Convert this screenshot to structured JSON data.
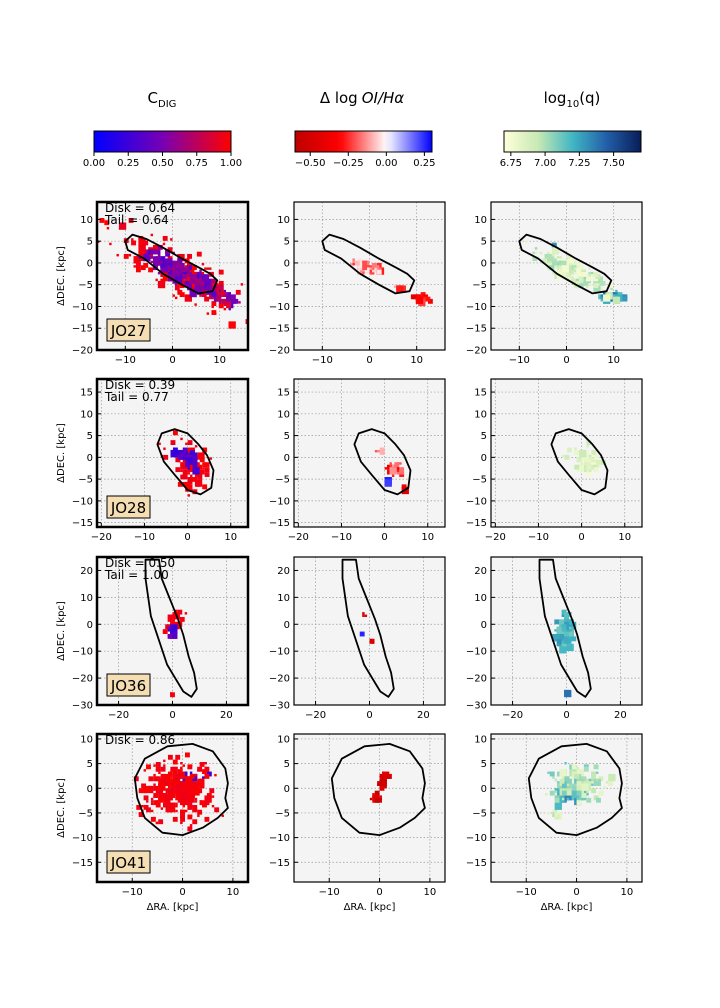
{
  "chart_data": {
    "type": "panel-grid",
    "columns": [
      {
        "key": "cdig",
        "title": "C",
        "title_sub": "DIG",
        "colorbar": {
          "cmap": "bluered",
          "range": [
            0,
            1
          ],
          "ticks": [
            "0.00",
            "0.25",
            "0.50",
            "0.75",
            "1.00"
          ],
          "tick_values": [
            0,
            0.25,
            0.5,
            0.75,
            1.0
          ]
        }
      },
      {
        "key": "dlog",
        "title": "Δ log",
        "title_italic": "OI/Hα",
        "colorbar": {
          "cmap": "redwhiteblue",
          "range": [
            -0.6,
            0.3
          ],
          "ticks": [
            "−0.50",
            "−0.25",
            "0.00",
            "0.25"
          ],
          "tick_values": [
            -0.5,
            -0.25,
            0,
            0.25
          ]
        }
      },
      {
        "key": "logq",
        "title": "log",
        "title_sub": "10",
        "title_tail": "(q)",
        "colorbar": {
          "cmap": "ylgnbu",
          "range": [
            6.7,
            7.7
          ],
          "ticks": [
            "6.75",
            "7.00",
            "7.25",
            "7.50"
          ],
          "tick_values": [
            6.75,
            7.0,
            7.25,
            7.5
          ]
        }
      }
    ],
    "xlabel": "ΔRA. [kpc]",
    "ylabel": "ΔDEC. [kpc]",
    "rows": [
      {
        "name": "JO27",
        "disk": "Disk = 0.64",
        "tail": "Tail = 0.64",
        "xlim": [
          -16,
          16
        ],
        "ylim": [
          -20,
          14
        ],
        "xticks": [
          -10,
          0,
          10
        ],
        "yticks": [
          -20,
          -15,
          -10,
          -5,
          0,
          5,
          10
        ],
        "xtick_labels": [
          "−10",
          "0",
          "10"
        ],
        "ytick_labels": [
          "−20",
          "−15",
          "−10",
          "−5",
          "0",
          "5",
          "10"
        ],
        "contour": [
          [
            -8.5,
            6.5
          ],
          [
            -5.5,
            5.5
          ],
          [
            -2,
            3.5
          ],
          [
            2,
            1
          ],
          [
            5.5,
            -1
          ],
          [
            8,
            -2.5
          ],
          [
            9.5,
            -4
          ],
          [
            8.5,
            -6.5
          ],
          [
            5.5,
            -7
          ],
          [
            2,
            -5
          ],
          [
            -2,
            -2.5
          ],
          [
            -6,
            1
          ],
          [
            -9.5,
            3
          ],
          [
            -10,
            5
          ]
        ],
        "blobs": {
          "cdig": [
            {
              "cx": 0,
              "cy": -1,
              "sx": 7,
              "sy": 2.2,
              "ang": -32,
              "n": 140,
              "v": [
                0.3,
                0.7
              ]
            },
            {
              "cx": 8,
              "cy": -6,
              "sx": 6,
              "sy": 1.8,
              "ang": -25,
              "n": 90,
              "v": [
                0.35,
                0.95
              ]
            },
            {
              "cx": 0,
              "cy": -1,
              "sx": 13,
              "sy": 4.5,
              "ang": -32,
              "n": 160,
              "v": [
                0.92,
                1.0
              ]
            }
          ],
          "dlog": [
            {
              "cx": -1,
              "cy": -0.5,
              "sx": 3,
              "sy": 1.3,
              "ang": -20,
              "n": 50,
              "v": [
                -0.3,
                0.0
              ]
            },
            {
              "cx": 10.5,
              "cy": -7.5,
              "sx": 1.5,
              "sy": 0.6,
              "ang": 0,
              "n": 25,
              "v": [
                -0.45,
                -0.2
              ]
            },
            {
              "cx": 6,
              "cy": -5.3,
              "sx": 1.2,
              "sy": 0.5,
              "ang": 0,
              "n": 8,
              "v": [
                -0.3,
                -0.1
              ]
            }
          ],
          "logq": [
            {
              "cx": 1,
              "cy": -1.5,
              "sx": 8,
              "sy": 2,
              "ang": -30,
              "n": 150,
              "v": [
                6.75,
                7.05
              ]
            },
            {
              "cx": 9.5,
              "cy": -7.3,
              "sx": 2,
              "sy": 0.8,
              "ang": 0,
              "n": 40,
              "v": [
                7.15,
                7.45
              ]
            },
            {
              "cx": -3,
              "cy": 4.5,
              "sx": 0.6,
              "sy": 0.5,
              "ang": 0,
              "n": 5,
              "v": [
                7.25,
                7.35
              ]
            }
          ]
        }
      },
      {
        "name": "JO28",
        "disk": "Disk = 0.39",
        "tail": "Tail = 0.77",
        "xlim": [
          -21,
          14
        ],
        "ylim": [
          -16,
          18
        ],
        "xticks": [
          -20,
          -10,
          0,
          10
        ],
        "yticks": [
          -15,
          -10,
          -5,
          0,
          5,
          10,
          15
        ],
        "xtick_labels": [
          "−20",
          "−10",
          "0",
          "10"
        ],
        "ytick_labels": [
          "−15",
          "−10",
          "−5",
          "0",
          "5",
          "10",
          "15"
        ],
        "contour": [
          [
            -6,
            5.5
          ],
          [
            -3,
            6.5
          ],
          [
            0,
            5.5
          ],
          [
            2.5,
            3
          ],
          [
            4.5,
            0.5
          ],
          [
            6,
            -3
          ],
          [
            5.5,
            -7
          ],
          [
            3,
            -8.5
          ],
          [
            0,
            -7.5
          ],
          [
            -3,
            -4
          ],
          [
            -5.5,
            -1
          ],
          [
            -7,
            3
          ]
        ],
        "blobs": {
          "cdig": [
            {
              "cx": 0,
              "cy": 0,
              "sx": 2.2,
              "sy": 1.3,
              "ang": -55,
              "n": 45,
              "v": [
                0.2,
                0.45
              ]
            },
            {
              "cx": -3,
              "cy": 1.8,
              "sx": 1.2,
              "sy": 0.5,
              "ang": 0,
              "n": 12,
              "v": [
                0.18,
                0.3
              ]
            },
            {
              "cx": 0,
              "cy": -1,
              "sx": 6,
              "sy": 3.5,
              "ang": -55,
              "n": 110,
              "v": [
                0.92,
                1.0
              ]
            }
          ],
          "dlog": [
            {
              "cx": 2,
              "cy": -2,
              "sx": 1.5,
              "sy": 1.3,
              "ang": 0,
              "n": 30,
              "v": [
                -0.45,
                -0.1
              ]
            },
            {
              "cx": -1.5,
              "cy": 2,
              "sx": 0.8,
              "sy": 0.4,
              "ang": 0,
              "n": 6,
              "v": [
                -0.25,
                -0.05
              ]
            },
            {
              "cx": 0,
              "cy": -5,
              "sx": 0.6,
              "sy": 0.4,
              "ang": 0,
              "n": 3,
              "v": [
                0.2,
                0.28
              ]
            },
            {
              "cx": 4,
              "cy": -6.5,
              "sx": 0.6,
              "sy": 0.3,
              "ang": 0,
              "n": 3,
              "v": [
                -0.45,
                -0.3
              ]
            }
          ],
          "logq": [
            {
              "cx": 0.5,
              "cy": -0.5,
              "sx": 3.5,
              "sy": 3,
              "ang": 0,
              "n": 80,
              "v": [
                6.75,
                6.95
              ]
            }
          ]
        }
      },
      {
        "name": "JO36",
        "disk": "Disk = 0.50",
        "tail": "Tail = 1.00",
        "xlim": [
          -28,
          28
        ],
        "ylim": [
          -30,
          25
        ],
        "xticks": [
          -20,
          0,
          20
        ],
        "yticks": [
          -30,
          -20,
          -10,
          0,
          10,
          20
        ],
        "xtick_labels": [
          "−20",
          "0",
          "20"
        ],
        "ytick_labels": [
          "−30",
          "−20",
          "−10",
          "0",
          "10",
          "20"
        ],
        "contour": [
          [
            -10,
            24
          ],
          [
            -5,
            24
          ],
          [
            -4,
            17
          ],
          [
            -2,
            12
          ],
          [
            0,
            7
          ],
          [
            2,
            2
          ],
          [
            4,
            -4
          ],
          [
            6,
            -12
          ],
          [
            8,
            -18
          ],
          [
            9,
            -24
          ],
          [
            7,
            -27
          ],
          [
            4,
            -25
          ],
          [
            1,
            -20
          ],
          [
            -2,
            -15
          ],
          [
            -4,
            -9
          ],
          [
            -6,
            -3
          ],
          [
            -8,
            3
          ],
          [
            -9,
            10
          ],
          [
            -10,
            17
          ]
        ],
        "blobs": {
          "cdig": [
            {
              "cx": -1,
              "cy": -1.5,
              "sx": 1.2,
              "sy": 2.5,
              "ang": 0,
              "n": 20,
              "v": [
                0.2,
                0.5
              ]
            },
            {
              "cx": 0,
              "cy": 1,
              "sx": 2.5,
              "sy": 4,
              "ang": -10,
              "n": 40,
              "v": [
                0.92,
                1.0
              ]
            },
            {
              "cx": -1,
              "cy": -25,
              "sx": 0.7,
              "sy": 0.5,
              "ang": 0,
              "n": 3,
              "v": [
                0.95,
                1.0
              ]
            }
          ],
          "dlog": [
            {
              "cx": -2.5,
              "cy": 3,
              "sx": 0.6,
              "sy": 1,
              "ang": 0,
              "n": 3,
              "v": [
                -0.5,
                -0.4
              ]
            },
            {
              "cx": 0,
              "cy": -5.5,
              "sx": 0.8,
              "sy": 0.8,
              "ang": 0,
              "n": 4,
              "v": [
                -0.5,
                -0.35
              ]
            },
            {
              "cx": -4,
              "cy": -3,
              "sx": 0.4,
              "sy": 0.4,
              "ang": 0,
              "n": 1,
              "v": [
                0.25,
                0.29
              ]
            }
          ],
          "logq": [
            {
              "cx": -1.5,
              "cy": -1,
              "sx": 2.8,
              "sy": 6,
              "ang": -8,
              "n": 110,
              "v": [
                7.1,
                7.3
              ]
            },
            {
              "cx": -0.5,
              "cy": -1,
              "sx": 1.2,
              "sy": 3,
              "ang": 0,
              "n": 35,
              "v": [
                7.45,
                7.7
              ]
            },
            {
              "cx": -1,
              "cy": -25,
              "sx": 0.4,
              "sy": 0.4,
              "ang": 0,
              "n": 2,
              "v": [
                7.3,
                7.4
              ]
            }
          ]
        }
      },
      {
        "name": "JO41",
        "disk": "Disk = 0.86",
        "tail": "",
        "xlim": [
          -17,
          13
        ],
        "ylim": [
          -19,
          11
        ],
        "xticks": [
          -10,
          0,
          10
        ],
        "yticks": [
          -15,
          -10,
          -5,
          0,
          5,
          10
        ],
        "xtick_labels": [
          "−10",
          "0",
          "10"
        ],
        "ytick_labels": [
          "−15",
          "−10",
          "−5",
          "0",
          "5",
          "10"
        ],
        "contour": [
          [
            -3,
            8.5
          ],
          [
            2,
            9
          ],
          [
            6,
            7.5
          ],
          [
            8.5,
            4
          ],
          [
            9,
            1
          ],
          [
            8.5,
            -2
          ],
          [
            9,
            -4
          ],
          [
            7,
            -6
          ],
          [
            4,
            -8
          ],
          [
            0,
            -9.5
          ],
          [
            -4,
            -9
          ],
          [
            -7.5,
            -6
          ],
          [
            -9,
            -2
          ],
          [
            -9.5,
            2
          ],
          [
            -7.5,
            6
          ]
        ],
        "blobs": {
          "cdig": [
            {
              "cx": -1.5,
              "cy": 0,
              "sx": 6.5,
              "sy": 5.5,
              "ang": 0,
              "n": 300,
              "v": [
                0.93,
                1.0
              ]
            },
            {
              "cx": 1.5,
              "cy": 2.5,
              "sx": 2.3,
              "sy": 1.6,
              "ang": 0,
              "n": 24,
              "v": [
                0.18,
                0.35
              ]
            },
            {
              "cx": -9,
              "cy": -4,
              "sx": 1,
              "sy": 1,
              "ang": 0,
              "n": 4,
              "v": [
                0.95,
                1.0
              ]
            }
          ],
          "dlog": [
            {
              "cx": 0.5,
              "cy": 2,
              "sx": 0.8,
              "sy": 1.5,
              "ang": 0,
              "n": 14,
              "v": [
                -0.55,
                -0.4
              ]
            },
            {
              "cx": -1,
              "cy": -1.5,
              "sx": 1.2,
              "sy": 0.8,
              "ang": 0,
              "n": 10,
              "v": [
                -0.55,
                -0.4
              ]
            }
          ],
          "logq": [
            {
              "cx": 0,
              "cy": 1.5,
              "sx": 4.5,
              "sy": 3.3,
              "ang": 0,
              "n": 150,
              "v": [
                6.8,
                7.15
              ]
            },
            {
              "cx": -2.5,
              "cy": -0.5,
              "sx": 2,
              "sy": 2,
              "ang": 0,
              "n": 40,
              "v": [
                7.1,
                7.35
              ]
            },
            {
              "cx": -5,
              "cy": -5,
              "sx": 0.8,
              "sy": 0.8,
              "ang": 0,
              "n": 8,
              "v": [
                6.8,
                7.0
              ]
            }
          ]
        }
      }
    ]
  }
}
